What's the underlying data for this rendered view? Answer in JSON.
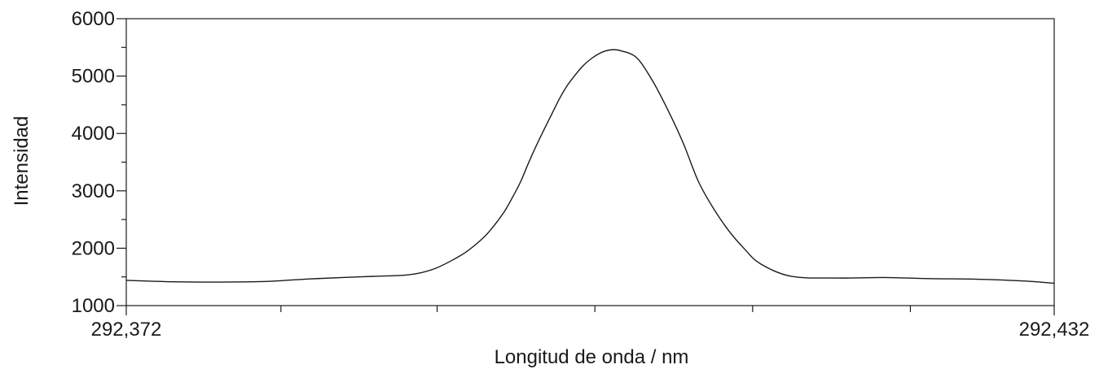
{
  "chart_data": {
    "type": "line",
    "title": "",
    "xlabel": "Longitud de onda / nm",
    "ylabel": "Intensidad",
    "xlim": [
      292.372,
      292.432
    ],
    "ylim": [
      1000,
      6000
    ],
    "x_tick_labels": [
      {
        "value": 292.372,
        "label": "292,372"
      },
      {
        "value": 292.432,
        "label": "292,432"
      }
    ],
    "x_minor_ticks": [
      292.382,
      292.3921,
      292.4023,
      292.4125,
      292.4227
    ],
    "y_ticks": [
      1000,
      2000,
      3000,
      4000,
      5000,
      6000
    ],
    "y_minor_ticks": [
      1500,
      2500,
      3500,
      4500,
      5500
    ],
    "grid": false,
    "series": [
      {
        "color": "#1a1a1a",
        "x": [
          292.372,
          292.375,
          292.378,
          292.381,
          292.3835,
          292.386,
          292.388,
          292.39,
          292.391,
          292.392,
          292.393,
          292.394,
          292.395,
          292.3955,
          292.396,
          292.3965,
          292.397,
          292.3975,
          292.398,
          292.3985,
          292.399,
          292.3995,
          292.4,
          292.4005,
          292.401,
          292.4015,
          292.402,
          292.4025,
          292.403,
          292.4035,
          292.404,
          292.405,
          292.406,
          292.407,
          292.408,
          292.409,
          292.41,
          292.411,
          292.412,
          292.413,
          292.415,
          292.418,
          292.421,
          292.424,
          292.427,
          292.43,
          292.432
        ],
        "y": [
          1440,
          1415,
          1410,
          1420,
          1460,
          1490,
          1510,
          1530,
          1570,
          1650,
          1780,
          1940,
          2160,
          2300,
          2470,
          2660,
          2900,
          3160,
          3480,
          3780,
          4060,
          4330,
          4600,
          4830,
          5010,
          5170,
          5290,
          5380,
          5440,
          5460,
          5440,
          5320,
          4930,
          4420,
          3840,
          3160,
          2680,
          2290,
          1980,
          1730,
          1510,
          1480,
          1490,
          1470,
          1460,
          1430,
          1390
        ]
      }
    ]
  }
}
